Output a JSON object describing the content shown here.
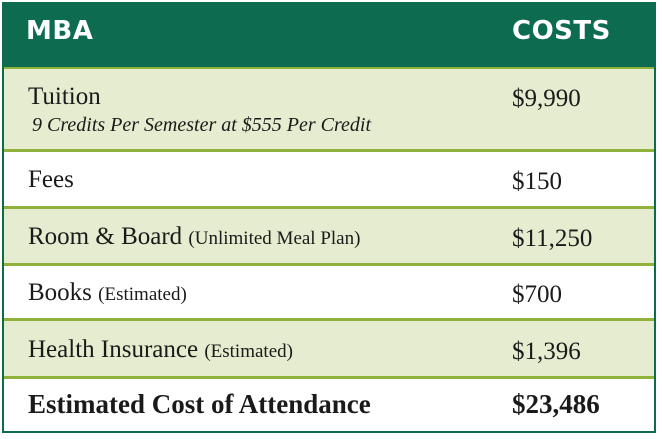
{
  "header": {
    "program": "MBA",
    "costs": "COSTS"
  },
  "rows": [
    {
      "item": "Tuition",
      "note": "",
      "subnote": "9 Credits Per Semester at $555 Per Credit",
      "cost": "$9,990"
    },
    {
      "item": "Fees",
      "note": "",
      "cost": "$150"
    },
    {
      "item": "Room & Board",
      "note": "(Unlimited Meal Plan)",
      "cost": "$11,250"
    },
    {
      "item": "Books",
      "note": "(Estimated)",
      "cost": "$700"
    },
    {
      "item": "Health Insurance",
      "note": "(Estimated)",
      "cost": "$1,396"
    }
  ],
  "total": {
    "item": "Estimated Cost of Attendance",
    "cost": "$23,486"
  },
  "colors": {
    "header_bg": "#0d6b50",
    "divider": "#8fb23a",
    "shaded_row": "#e5eccf"
  }
}
